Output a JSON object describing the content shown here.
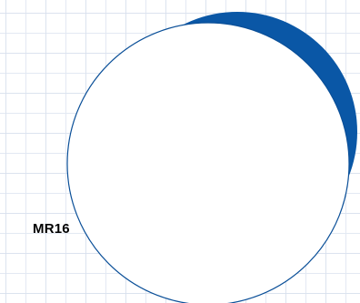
{
  "label": "MR16",
  "colors": {
    "accent": "#0a57a6",
    "face": "#ffffff",
    "outline": "#0a4f98"
  }
}
